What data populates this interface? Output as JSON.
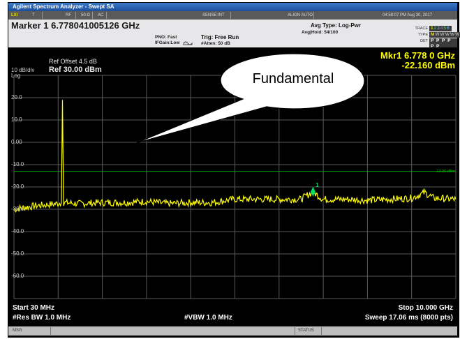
{
  "window": {
    "title": "Agilent Spectrum Analyzer - Swept SA"
  },
  "status_strip": {
    "ind": "LXI",
    "t": "T",
    "rf": "RF",
    "impedance": "50 Ω",
    "coupling": "AC",
    "sense": "SENSE:INT",
    "align": "ALIGN AUTO",
    "timestamp": "04:58:07 PM Aug 30, 2017"
  },
  "header": {
    "marker_readout": "Marker 1 6.778041005126 GHz",
    "pno": "PNO: Fast",
    "ifgain": "IFGain:Low",
    "trig": "Trig: Free Run",
    "atten": "#Atten: 50 dB",
    "avg_type": "Avg Type: Log-Pwr",
    "avg_hold": "Avg|Hold: 54/100",
    "trace_label": "TRACE",
    "type_label": "TYPE",
    "det_label": "DET",
    "trace_digits": [
      "1",
      "2",
      "3",
      "4",
      "5",
      "6"
    ],
    "type_value": "M",
    "det_value": "P P P P P P"
  },
  "display": {
    "scale_div": "10 dB/div",
    "scale_type": "Log",
    "ref_offset": "Ref Offset 4.5 dB",
    "ref_level": "Ref 30.00 dBm",
    "mkr_freq": "Mkr1 6.778 0 GHz",
    "mkr_amp": "-22.160 dBm",
    "display_line": "-13.00 dBm",
    "marker_tag": "1",
    "y_ticks": [
      "20.0",
      "10.0",
      "0.00",
      "-10.0",
      "-20.0",
      "-30.0",
      "-40.0",
      "-50.0",
      "-60.0"
    ],
    "start": "Start 30 MHz",
    "res_bw": "#Res BW 1.0 MHz",
    "vbw": "#VBW 1.0 MHz",
    "stop": "Stop 10.000 GHz",
    "sweep": "Sweep  17.06 ms (8000 pts)",
    "callout": "Fundamental"
  },
  "message_bar": {
    "msg": "MSG",
    "status": "STATUS"
  },
  "colors": {
    "trace": "#ffff00",
    "grid": "#5a5a5a",
    "display_line": "#00a000",
    "marker": "#00e060"
  },
  "chart_data": {
    "type": "line",
    "x_unit": "GHz",
    "y_unit": "dBm",
    "xlim": [
      0.03,
      10.0
    ],
    "ylim": [
      -70,
      30
    ],
    "display_line_dbm": -13.0,
    "marker": {
      "x": 6.778,
      "y": -22.16
    },
    "series": [
      {
        "x": [
          0.03,
          0.5,
          1.0,
          1.1,
          1.125,
          1.15,
          1.5,
          2.0,
          2.5,
          3.0,
          3.5,
          4.0,
          4.5,
          5.0,
          5.5,
          6.0,
          6.5,
          6.778,
          7.0,
          7.5,
          8.0,
          8.5,
          9.0,
          9.3,
          9.5,
          10.0
        ],
        "y": [
          -30,
          -28.5,
          -27.5,
          -27,
          19,
          -27,
          -27.5,
          -27,
          -27,
          -26.5,
          -27.5,
          -27,
          -27,
          -25.5,
          -25.5,
          -25.5,
          -25.5,
          -22.2,
          -25.5,
          -25.5,
          -26,
          -25.5,
          -25,
          -22.5,
          -25,
          -25.5
        ]
      }
    ]
  }
}
